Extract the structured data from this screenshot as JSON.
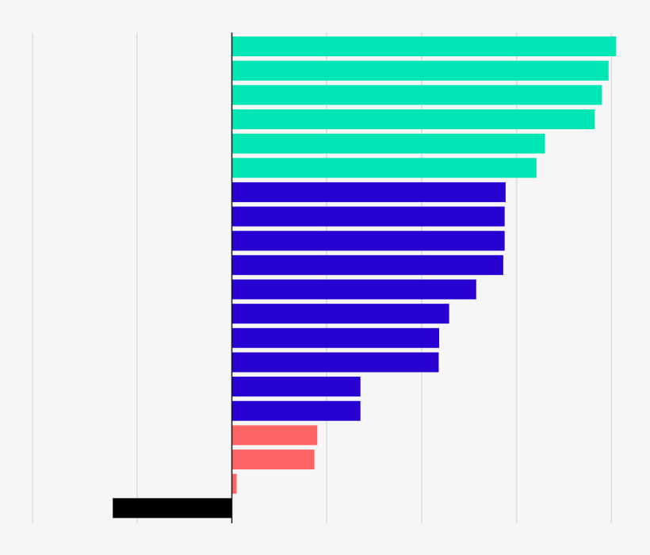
{
  "chart_data": {
    "type": "bar",
    "orientation": "horizontal",
    "title": "",
    "xlabel": "",
    "ylabel": "",
    "grid": true,
    "zero_line": true,
    "xlim": [
      -4.2,
      8.1
    ],
    "gridlines_at": [
      -4.2,
      -2.0,
      0,
      2,
      4,
      6,
      8
    ],
    "bars": [
      {
        "value": 8.1,
        "color": "#00e6b4"
      },
      {
        "value": 7.94,
        "color": "#00e6b4"
      },
      {
        "value": 7.8,
        "color": "#00e6b4"
      },
      {
        "value": 7.65,
        "color": "#00e6b4"
      },
      {
        "value": 6.6,
        "color": "#00e6b4"
      },
      {
        "value": 6.42,
        "color": "#00e6b4"
      },
      {
        "value": 5.77,
        "color": "#2800d2"
      },
      {
        "value": 5.75,
        "color": "#2800d2"
      },
      {
        "value": 5.75,
        "color": "#2800d2"
      },
      {
        "value": 5.72,
        "color": "#2800d2"
      },
      {
        "value": 5.15,
        "color": "#2800d2"
      },
      {
        "value": 4.58,
        "color": "#2800d2"
      },
      {
        "value": 4.37,
        "color": "#2800d2"
      },
      {
        "value": 4.36,
        "color": "#2800d2"
      },
      {
        "value": 2.71,
        "color": "#2800d2"
      },
      {
        "value": 2.71,
        "color": "#2800d2"
      },
      {
        "value": 1.8,
        "color": "#ff6464"
      },
      {
        "value": 1.74,
        "color": "#ff6464"
      },
      {
        "value": 0.1,
        "color": "#ff6464"
      },
      {
        "value": -2.51,
        "color": "#000000"
      }
    ]
  }
}
